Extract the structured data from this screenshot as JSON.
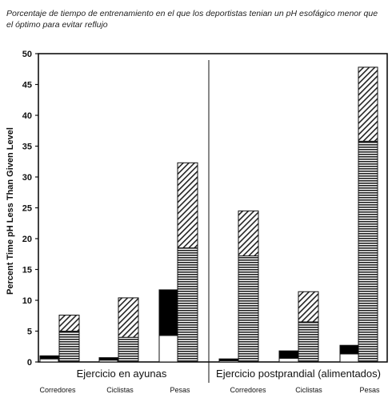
{
  "title": "Porcentaje de tiempo de entrenamiento en el que los deportistas tenian un pH esofágico menor que el óptimo para evitar reflujo",
  "chart_data": {
    "type": "bar",
    "ylabel": "Percent Time pH Less Than Given Level",
    "ylim": [
      0,
      50
    ],
    "yticks": [
      0,
      5,
      10,
      15,
      20,
      25,
      30,
      35,
      40,
      45,
      50
    ],
    "groups": [
      {
        "label": "Ejercicio en ayunas",
        "categories": [
          "Corredores",
          "Ciclistas",
          "Pesas"
        ],
        "bar_a": [
          {
            "white": 0.5,
            "black": 1.0
          },
          {
            "white": 0.3,
            "black": 0.7
          },
          {
            "white": 4.3,
            "black": 11.7
          }
        ],
        "bar_b": [
          {
            "striped": 5.0,
            "hatched": 7.6
          },
          {
            "striped": 4.0,
            "hatched": 10.4
          },
          {
            "striped": 18.5,
            "hatched": 32.3
          }
        ]
      },
      {
        "label": "Ejercicio postprandial (alimentados)",
        "categories": [
          "Corredores",
          "Ciclistas",
          "Pesas"
        ],
        "bar_a": [
          {
            "white": 0.2,
            "black": 0.5
          },
          {
            "white": 0.6,
            "black": 1.8
          },
          {
            "white": 1.3,
            "black": 2.7
          }
        ],
        "bar_b": [
          {
            "striped": 17.2,
            "hatched": 24.5
          },
          {
            "striped": 6.5,
            "hatched": 11.4
          },
          {
            "striped": 35.8,
            "hatched": 47.8
          }
        ]
      }
    ]
  }
}
